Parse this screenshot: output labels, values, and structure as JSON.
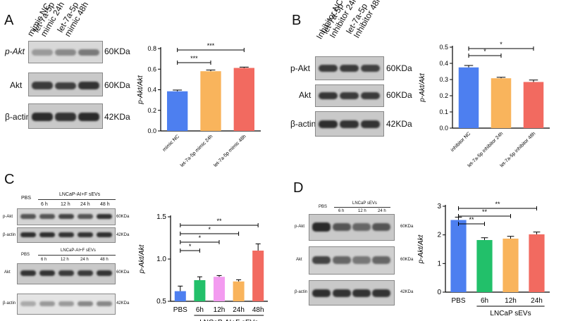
{
  "panels": {
    "A": {
      "label": "A",
      "lanes": [
        "mimic NC",
        "let-7a-5p mimic 24h",
        "let-7a-5p mimic 48h"
      ],
      "blots": [
        {
          "protein": "p-Akt",
          "mw": "60KDa"
        },
        {
          "protein": "Akt",
          "mw": "60KDa"
        },
        {
          "protein": "β-actin",
          "mw": "42KDa"
        }
      ]
    },
    "B": {
      "label": "B",
      "lanes": [
        "Inhibitor NC",
        "let-7a-5p Inhibitor 24h",
        "let-7a-5p Inhibitor 48h"
      ],
      "blots": [
        {
          "protein": "p-Akt",
          "mw": "60KDa"
        },
        {
          "protein": "Akt",
          "mw": "60KDa"
        },
        {
          "protein": "β-actin",
          "mw": "42KDa"
        }
      ]
    },
    "C": {
      "label": "C",
      "group_label": "LNCaP-AI+F sEVs",
      "pbs": "PBS",
      "times": [
        "6 h",
        "12 h",
        "24 h",
        "48 h"
      ],
      "blots": [
        {
          "protein": "p-Akt",
          "mw": "60KDa"
        },
        {
          "protein": "β-actin",
          "mw": "42KDa"
        },
        {
          "protein": "Akt",
          "mw": "60KDa"
        },
        {
          "protein": "β-actin",
          "mw": "42KDa"
        }
      ]
    },
    "D": {
      "label": "D",
      "group_label": "LNCaP sEVs",
      "pbs": "PBS",
      "times": [
        "6 h",
        "12 h",
        "24 h"
      ],
      "blots": [
        {
          "protein": "p-Akt",
          "mw": "60KDa"
        },
        {
          "protein": "Akt",
          "mw": "60KDa"
        },
        {
          "protein": "β-actin",
          "mw": "42KDa"
        }
      ]
    }
  },
  "chart_data": [
    {
      "id": "A",
      "type": "bar",
      "ylabel": "p-Akt/Akt",
      "ylim": [
        0,
        0.8
      ],
      "yticks": [
        "0.0",
        "0.2",
        "0.4",
        "0.6",
        "0.8"
      ],
      "categories": [
        "mimic NC",
        "let-7a-5p mimic 24h",
        "let-7a-5p mimic 48h"
      ],
      "values": [
        0.385,
        0.58,
        0.612
      ],
      "errors": [
        0.012,
        0.012,
        0.008
      ],
      "colors": [
        "#4d7ff0",
        "#f9b45c",
        "#f26a60"
      ],
      "significance": [
        {
          "from": 0,
          "to": 1,
          "label": "***"
        },
        {
          "from": 0,
          "to": 2,
          "label": "***"
        }
      ]
    },
    {
      "id": "B",
      "type": "bar",
      "ylabel": "p-Akt/Akt",
      "ylim": [
        0,
        0.5
      ],
      "yticks": [
        "0.0",
        "0.1",
        "0.2",
        "0.3",
        "0.4",
        "0.5"
      ],
      "categories": [
        "inhibitor NC",
        "let-7a-5p inhibitor 24h",
        "let-7a-5p inhibitor 48h"
      ],
      "values": [
        0.375,
        0.308,
        0.285
      ],
      "errors": [
        0.012,
        0.006,
        0.012
      ],
      "colors": [
        "#4d7ff0",
        "#f9b45c",
        "#f26a60"
      ],
      "significance": [
        {
          "from": 0,
          "to": 1,
          "label": "*"
        },
        {
          "from": 0,
          "to": 2,
          "label": "*"
        }
      ]
    },
    {
      "id": "C",
      "type": "bar",
      "ylabel": "p-Akt/Akt",
      "ylim": [
        0.5,
        1.5
      ],
      "yticks": [
        "0.5",
        "1.0",
        "1.5"
      ],
      "categories": [
        "PBS",
        "6h",
        "12h",
        "24h",
        "48h"
      ],
      "values": [
        0.62,
        0.75,
        0.79,
        0.735,
        1.1
      ],
      "errors": [
        0.06,
        0.04,
        0.015,
        0.02,
        0.08
      ],
      "colors": [
        "#4d7ff0",
        "#22c06a",
        "#f39bf0",
        "#f9b45c",
        "#f26a60"
      ],
      "group_label": "LNCaP-AI+F sEVs",
      "significance": [
        {
          "from": 0,
          "to": 1,
          "label": "*"
        },
        {
          "from": 0,
          "to": 2,
          "label": "*"
        },
        {
          "from": 0,
          "to": 3,
          "label": "*"
        },
        {
          "from": 0,
          "to": 4,
          "label": "**"
        }
      ]
    },
    {
      "id": "D",
      "type": "bar",
      "ylabel": "p-Akt/Akt",
      "ylim": [
        0,
        3
      ],
      "yticks": [
        "0",
        "1",
        "2",
        "3"
      ],
      "categories": [
        "PBS",
        "6h",
        "12h",
        "24h"
      ],
      "values": [
        2.52,
        1.82,
        1.87,
        2.02
      ],
      "errors": [
        0.1,
        0.08,
        0.08,
        0.08
      ],
      "colors": [
        "#4d7ff0",
        "#22c06a",
        "#f9b45c",
        "#f26a60"
      ],
      "group_label": "LNCaP sEVs",
      "significance": [
        {
          "from": 0,
          "to": 1,
          "label": "**"
        },
        {
          "from": 0,
          "to": 2,
          "label": "**"
        },
        {
          "from": 0,
          "to": 3,
          "label": "**"
        }
      ]
    }
  ]
}
